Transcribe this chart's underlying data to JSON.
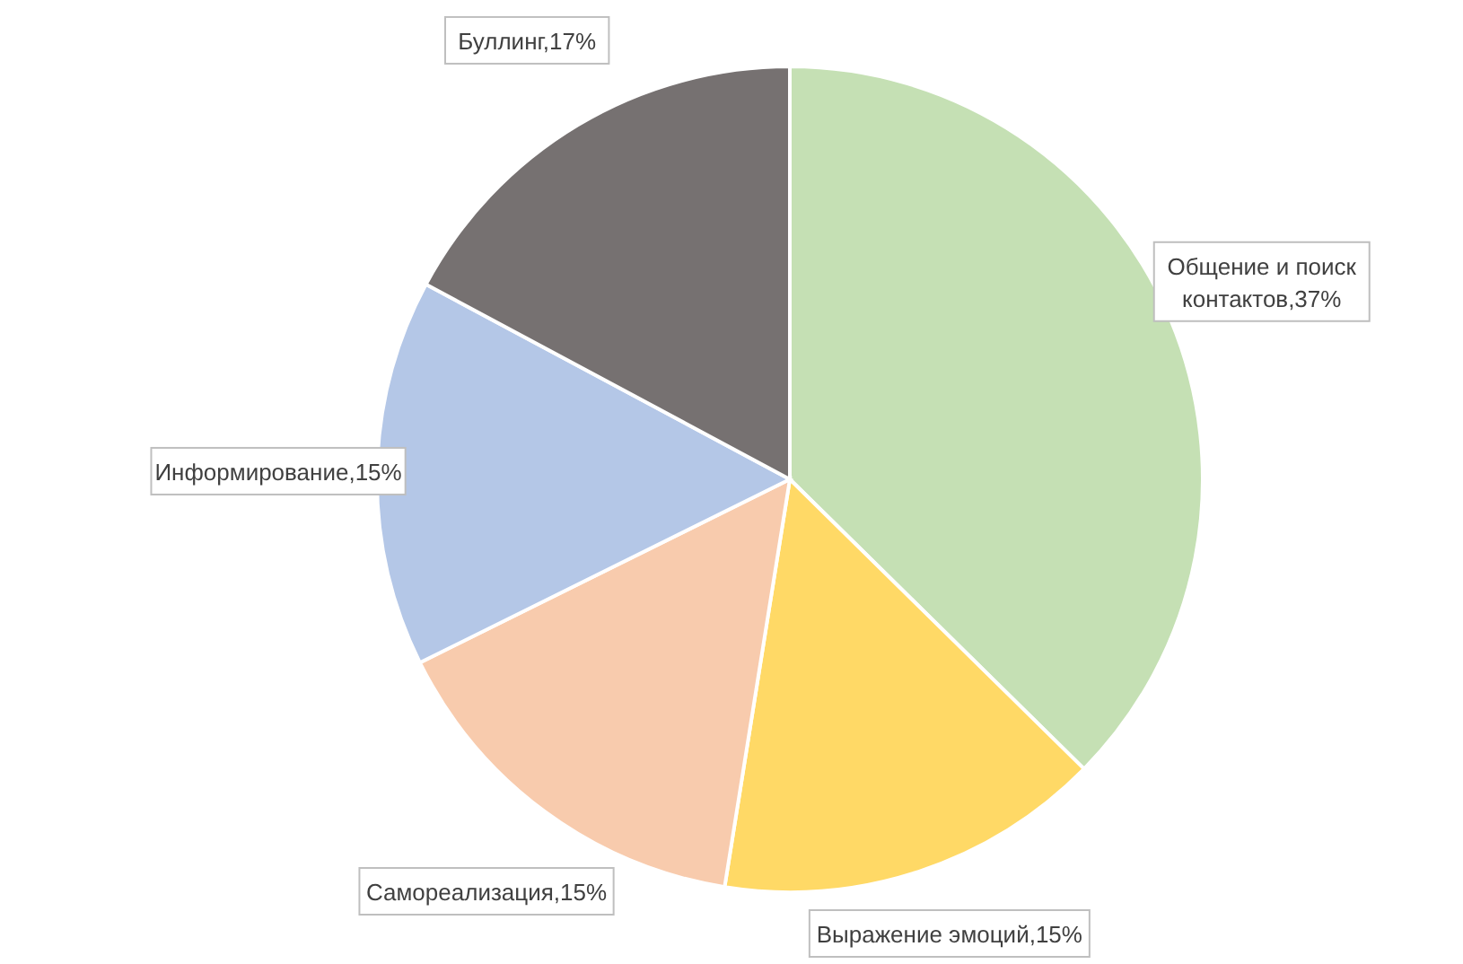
{
  "chart_data": {
    "type": "pie",
    "categories": [
      "Общение и поиск контактов",
      "Выражение эмоций",
      "Самореализация",
      "Информирование",
      "Буллинг"
    ],
    "values": [
      37,
      15,
      15,
      15,
      17
    ],
    "value_labels": [
      "37%",
      "15%",
      "15%",
      "15%",
      "17%"
    ],
    "colors": [
      "#c5e0b4",
      "#ffd966",
      "#f8cbad",
      "#b4c7e7",
      "#767171"
    ]
  }
}
